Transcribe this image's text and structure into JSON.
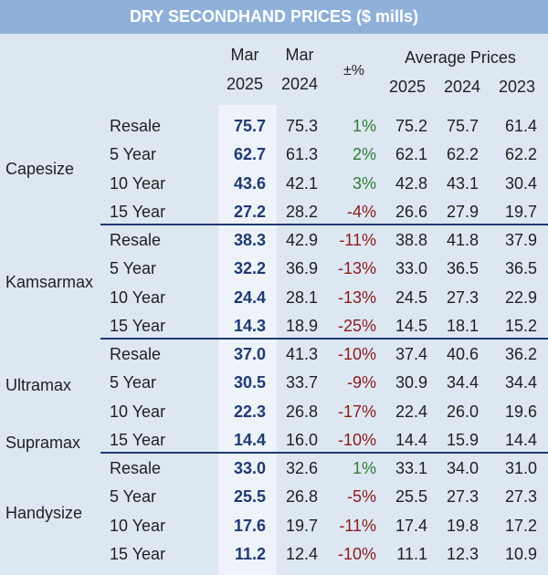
{
  "title": "DRY SECONDHAND PRICES ($ mills)",
  "headers": {
    "mar_2025_line1": "Mar",
    "mar_2025_line2": "2025",
    "mar_2024_line1": "Mar",
    "mar_2024_line2": "2024",
    "change": "±%",
    "avg_title": "Average Prices",
    "avg_2025": "2025",
    "avg_2024": "2024",
    "avg_2023": "2023"
  },
  "groups": [
    {
      "labels": [
        "Capesize"
      ],
      "rows": [
        {
          "age": "Resale",
          "mar2025": "75.7",
          "mar2024": "75.3",
          "change": "1%",
          "sign": "pos",
          "avg2025": "75.2",
          "avg2024": "75.7",
          "avg2023": "61.4"
        },
        {
          "age": "5 Year",
          "mar2025": "62.7",
          "mar2024": "61.3",
          "change": "2%",
          "sign": "pos",
          "avg2025": "62.1",
          "avg2024": "62.2",
          "avg2023": "62.2"
        },
        {
          "age": "10 Year",
          "mar2025": "43.6",
          "mar2024": "42.1",
          "change": "3%",
          "sign": "pos",
          "avg2025": "42.8",
          "avg2024": "43.1",
          "avg2023": "30.4"
        },
        {
          "age": "15 Year",
          "mar2025": "27.2",
          "mar2024": "28.2",
          "change": "-4%",
          "sign": "neg",
          "avg2025": "26.6",
          "avg2024": "27.9",
          "avg2023": "19.7"
        }
      ]
    },
    {
      "labels": [
        "Kamsarmax"
      ],
      "rows": [
        {
          "age": "Resale",
          "mar2025": "38.3",
          "mar2024": "42.9",
          "change": "-11%",
          "sign": "neg",
          "avg2025": "38.8",
          "avg2024": "41.8",
          "avg2023": "37.9"
        },
        {
          "age": "5 Year",
          "mar2025": "32.2",
          "mar2024": "36.9",
          "change": "-13%",
          "sign": "neg",
          "avg2025": "33.0",
          "avg2024": "36.5",
          "avg2023": "36.5"
        },
        {
          "age": "10 Year",
          "mar2025": "24.4",
          "mar2024": "28.1",
          "change": "-13%",
          "sign": "neg",
          "avg2025": "24.5",
          "avg2024": "27.3",
          "avg2023": "22.9"
        },
        {
          "age": "15 Year",
          "mar2025": "14.3",
          "mar2024": "18.9",
          "change": "-25%",
          "sign": "neg",
          "avg2025": "14.5",
          "avg2024": "18.1",
          "avg2023": "15.2"
        }
      ]
    },
    {
      "labels": [
        "Ultramax",
        "Supramax"
      ],
      "rows": [
        {
          "age": "Resale",
          "mar2025": "37.0",
          "mar2024": "41.3",
          "change": "-10%",
          "sign": "neg",
          "avg2025": "37.4",
          "avg2024": "40.6",
          "avg2023": "36.2"
        },
        {
          "age": "5 Year",
          "mar2025": "30.5",
          "mar2024": "33.7",
          "change": "-9%",
          "sign": "neg",
          "avg2025": "30.9",
          "avg2024": "34.4",
          "avg2023": "34.4"
        },
        {
          "age": "10 Year",
          "mar2025": "22.3",
          "mar2024": "26.8",
          "change": "-17%",
          "sign": "neg",
          "avg2025": "22.4",
          "avg2024": "26.0",
          "avg2023": "19.6"
        },
        {
          "age": "15 Year",
          "mar2025": "14.4",
          "mar2024": "16.0",
          "change": "-10%",
          "sign": "neg",
          "avg2025": "14.4",
          "avg2024": "15.9",
          "avg2023": "14.4"
        }
      ]
    },
    {
      "labels": [
        "Handysize"
      ],
      "rows": [
        {
          "age": "Resale",
          "mar2025": "33.0",
          "mar2024": "32.6",
          "change": "1%",
          "sign": "pos",
          "avg2025": "33.1",
          "avg2024": "34.0",
          "avg2023": "31.0"
        },
        {
          "age": "5 Year",
          "mar2025": "25.5",
          "mar2024": "26.8",
          "change": "-5%",
          "sign": "neg",
          "avg2025": "25.5",
          "avg2024": "27.3",
          "avg2023": "27.3"
        },
        {
          "age": "10 Year",
          "mar2025": "17.6",
          "mar2024": "19.7",
          "change": "-11%",
          "sign": "neg",
          "avg2025": "17.4",
          "avg2024": "19.8",
          "avg2023": "17.2"
        },
        {
          "age": "15 Year",
          "mar2025": "11.2",
          "mar2024": "12.4",
          "change": "-10%",
          "sign": "neg",
          "avg2025": "11.1",
          "avg2024": "12.3",
          "avg2023": "10.9"
        }
      ]
    }
  ]
}
